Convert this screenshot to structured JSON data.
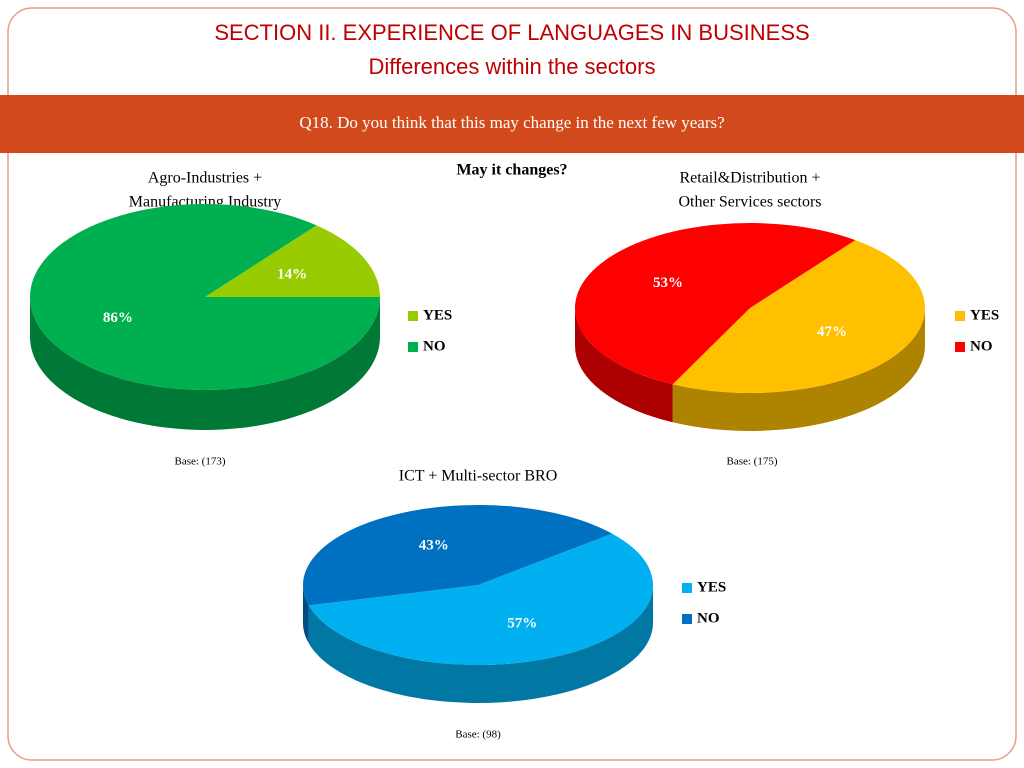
{
  "header": {
    "title": "SECTION II. EXPERIENCE OF LANGUAGES IN BUSINESS",
    "subtitle": "Differences within the sectors"
  },
  "question": "Q18. Do you think that this may change in the next few years?",
  "label": "May it changes?",
  "chart_data": [
    {
      "type": "pie",
      "title": [
        "Agro-Industries +",
        "Manufacturing Industry"
      ],
      "categories": [
        "YES",
        "NO"
      ],
      "values": [
        14,
        86
      ],
      "value_labels": [
        "14%",
        "86%"
      ],
      "colors": [
        "#99cc00",
        "#00b050"
      ],
      "note": "Base: (173)"
    },
    {
      "type": "pie",
      "title": [
        "Retail&Distribution +",
        "Other Services sectors"
      ],
      "categories": [
        "YES",
        "NO"
      ],
      "values": [
        47,
        53
      ],
      "value_labels": [
        "47%",
        "53%"
      ],
      "colors": [
        "#ffc000",
        "#ff0000"
      ],
      "note": "Base: (175)"
    },
    {
      "type": "pie",
      "title": [
        "ICT + Multi-sector BRO"
      ],
      "categories": [
        "YES",
        "NO"
      ],
      "values": [
        57,
        43
      ],
      "value_labels": [
        "57%",
        "43%"
      ],
      "colors": [
        "#00b0f0",
        "#0070c0"
      ],
      "note": "Base: (98)"
    }
  ]
}
